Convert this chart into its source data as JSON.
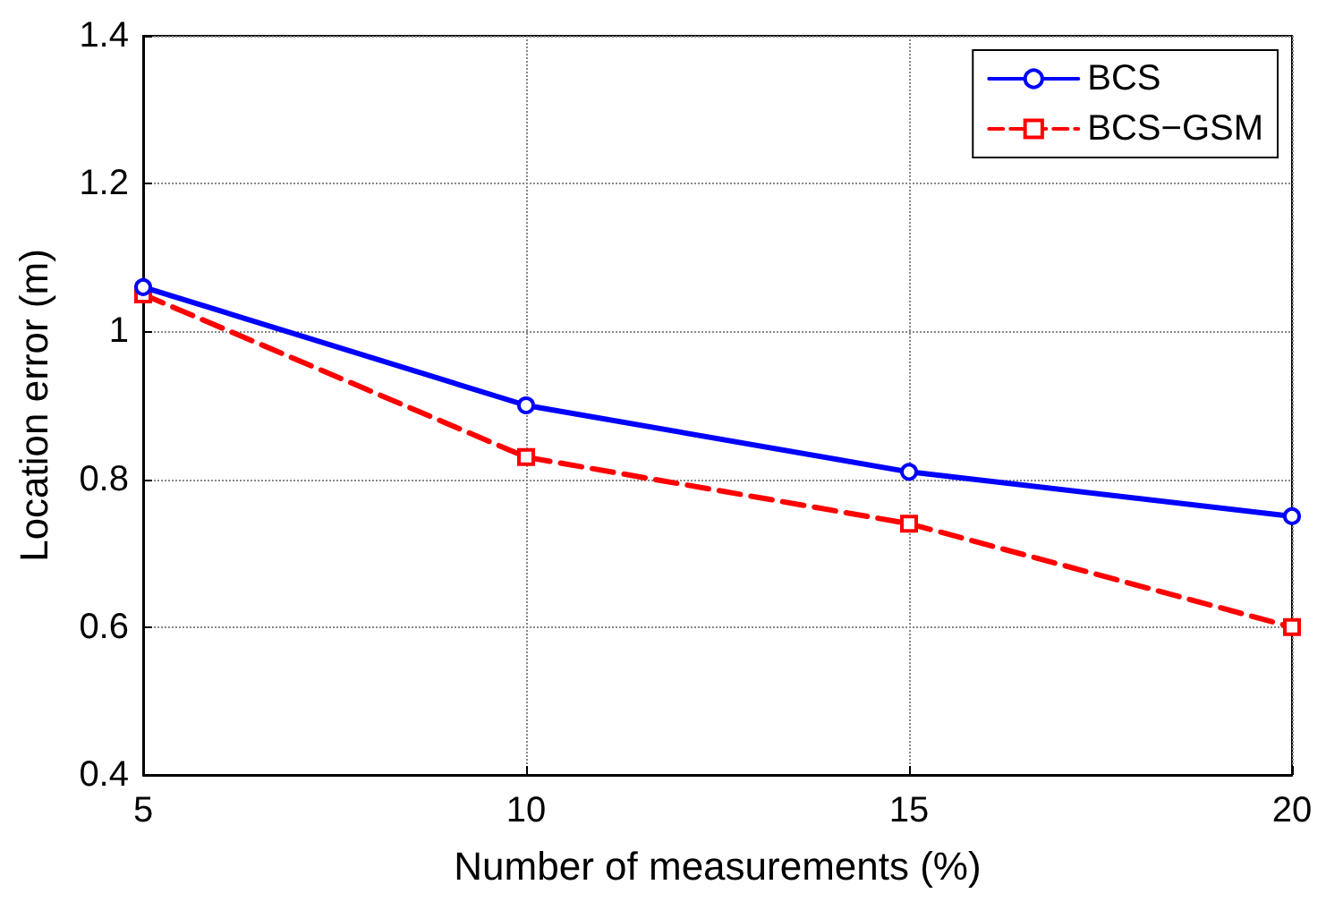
{
  "chart_data": {
    "type": "line",
    "xlabel": "Number of measurements (%)",
    "ylabel": "Location error (m)",
    "x": [
      5,
      10,
      15,
      20
    ],
    "xlim": [
      5,
      20
    ],
    "xticks": [
      5,
      10,
      15,
      20
    ],
    "ylim": [
      0.4,
      1.4
    ],
    "yticks": [
      0.4,
      0.6,
      0.8,
      {
        "value": 1,
        "label": "1"
      },
      1.2,
      1.4
    ],
    "grid": true,
    "legend": "top right",
    "series": [
      {
        "name": "BCS",
        "color": "#0000ff",
        "values": [
          1.06,
          0.9,
          0.81,
          0.75
        ],
        "marker": "circle",
        "line_style": "solid"
      },
      {
        "name": "BCS−GSM",
        "color": "#ff0000",
        "values": [
          1.05,
          0.83,
          0.74,
          0.6
        ],
        "marker": "square",
        "line_style": "dashed"
      }
    ]
  }
}
